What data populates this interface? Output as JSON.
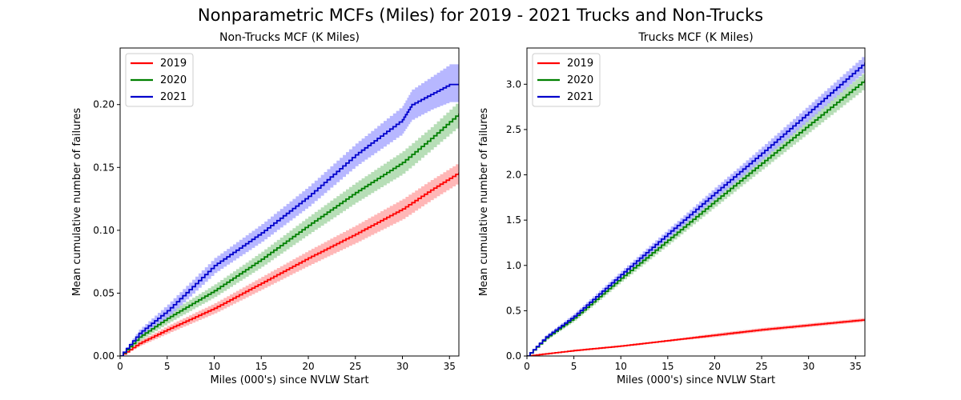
{
  "figure": {
    "title": "Nonparametric MCFs (Miles) for 2019 - 2021 Trucks and Non-Trucks"
  },
  "chart_data": [
    {
      "type": "line",
      "title": "Non-Trucks MCF (K Miles)",
      "xlabel": "Miles (000's) since NVLW Start",
      "ylabel": "Mean cumulative number of failures",
      "xlim": [
        0,
        36
      ],
      "ylim": [
        0,
        0.245
      ],
      "xticks": [
        0,
        5,
        10,
        15,
        20,
        25,
        30,
        35
      ],
      "yticks": [
        0.0,
        0.05,
        0.1,
        0.15,
        0.2
      ],
      "ytick_labels": [
        "0.00",
        "0.05",
        "0.10",
        "0.15",
        "0.20"
      ],
      "legend": "top-left",
      "grid": false,
      "series": [
        {
          "name": "2019",
          "color": "#ff0000",
          "band_color": "#ffaaaa",
          "x": [
            0,
            2,
            5,
            10,
            15,
            20,
            25,
            30,
            33,
            36
          ],
          "y": [
            0,
            0.01,
            0.021,
            0.038,
            0.058,
            0.078,
            0.097,
            0.117,
            0.132,
            0.146
          ],
          "lower": [
            0,
            0.008,
            0.018,
            0.034,
            0.053,
            0.072,
            0.09,
            0.109,
            0.124,
            0.138
          ],
          "upper": [
            0,
            0.012,
            0.024,
            0.042,
            0.063,
            0.084,
            0.104,
            0.125,
            0.14,
            0.154
          ]
        },
        {
          "name": "2020",
          "color": "#008000",
          "band_color": "#aad8aa",
          "x": [
            0,
            2,
            5,
            10,
            15,
            20,
            25,
            30,
            33,
            36
          ],
          "y": [
            0,
            0.015,
            0.03,
            0.052,
            0.077,
            0.104,
            0.13,
            0.154,
            0.173,
            0.193
          ],
          "lower": [
            0,
            0.012,
            0.026,
            0.047,
            0.071,
            0.097,
            0.122,
            0.145,
            0.164,
            0.183
          ],
          "upper": [
            0,
            0.018,
            0.034,
            0.057,
            0.083,
            0.111,
            0.138,
            0.163,
            0.182,
            0.203
          ]
        },
        {
          "name": "2021",
          "color": "#0000cc",
          "band_color": "#aaaaff",
          "x": [
            0,
            2,
            5,
            10,
            15,
            20,
            25,
            30,
            31,
            33,
            35,
            36
          ],
          "y": [
            0,
            0.018,
            0.036,
            0.072,
            0.098,
            0.127,
            0.16,
            0.188,
            0.2,
            0.208,
            0.216,
            0.216
          ],
          "lower": [
            0,
            0.015,
            0.031,
            0.066,
            0.091,
            0.119,
            0.151,
            0.177,
            0.188,
            0.196,
            0.202,
            0.202
          ],
          "upper": [
            0,
            0.021,
            0.041,
            0.078,
            0.105,
            0.135,
            0.169,
            0.199,
            0.212,
            0.222,
            0.232,
            0.232
          ]
        }
      ]
    },
    {
      "type": "line",
      "title": "Trucks MCF (K Miles)",
      "xlabel": "Miles (000's) since NVLW Start",
      "ylabel": "Mean cumulative number of failures",
      "xlim": [
        0,
        36
      ],
      "ylim": [
        0,
        3.4
      ],
      "xticks": [
        0,
        5,
        10,
        15,
        20,
        25,
        30,
        35
      ],
      "yticks": [
        0.0,
        0.5,
        1.0,
        1.5,
        2.0,
        2.5,
        3.0
      ],
      "ytick_labels": [
        "0.0",
        "0.5",
        "1.0",
        "1.5",
        "2.0",
        "2.5",
        "3.0"
      ],
      "legend": "top-left",
      "grid": false,
      "series": [
        {
          "name": "2019",
          "color": "#ff0000",
          "band_color": "#ffaaaa",
          "x": [
            0,
            5,
            10,
            15,
            20,
            25,
            30,
            36
          ],
          "y": [
            0,
            0.06,
            0.11,
            0.17,
            0.23,
            0.29,
            0.34,
            0.4
          ],
          "lower": [
            0,
            0.05,
            0.1,
            0.16,
            0.21,
            0.27,
            0.32,
            0.38
          ],
          "upper": [
            0,
            0.07,
            0.12,
            0.18,
            0.25,
            0.31,
            0.36,
            0.42
          ]
        },
        {
          "name": "2020",
          "color": "#008000",
          "band_color": "#aad8aa",
          "x": [
            0,
            2,
            5,
            10,
            15,
            20,
            25,
            30,
            36
          ],
          "y": [
            0,
            0.2,
            0.42,
            0.86,
            1.28,
            1.71,
            2.13,
            2.55,
            3.05
          ],
          "lower": [
            0,
            0.18,
            0.39,
            0.82,
            1.23,
            1.65,
            2.06,
            2.47,
            2.96
          ],
          "upper": [
            0,
            0.22,
            0.45,
            0.9,
            1.33,
            1.77,
            2.2,
            2.63,
            3.14
          ]
        },
        {
          "name": "2021",
          "color": "#0000cc",
          "band_color": "#aaaaff",
          "x": [
            0,
            2,
            5,
            10,
            15,
            20,
            25,
            30,
            36
          ],
          "y": [
            0,
            0.21,
            0.44,
            0.9,
            1.35,
            1.8,
            2.24,
            2.69,
            3.24
          ],
          "lower": [
            0,
            0.19,
            0.41,
            0.86,
            1.3,
            1.74,
            2.17,
            2.61,
            3.15
          ],
          "upper": [
            0,
            0.23,
            0.47,
            0.94,
            1.4,
            1.86,
            2.31,
            2.77,
            3.33
          ]
        }
      ]
    }
  ]
}
